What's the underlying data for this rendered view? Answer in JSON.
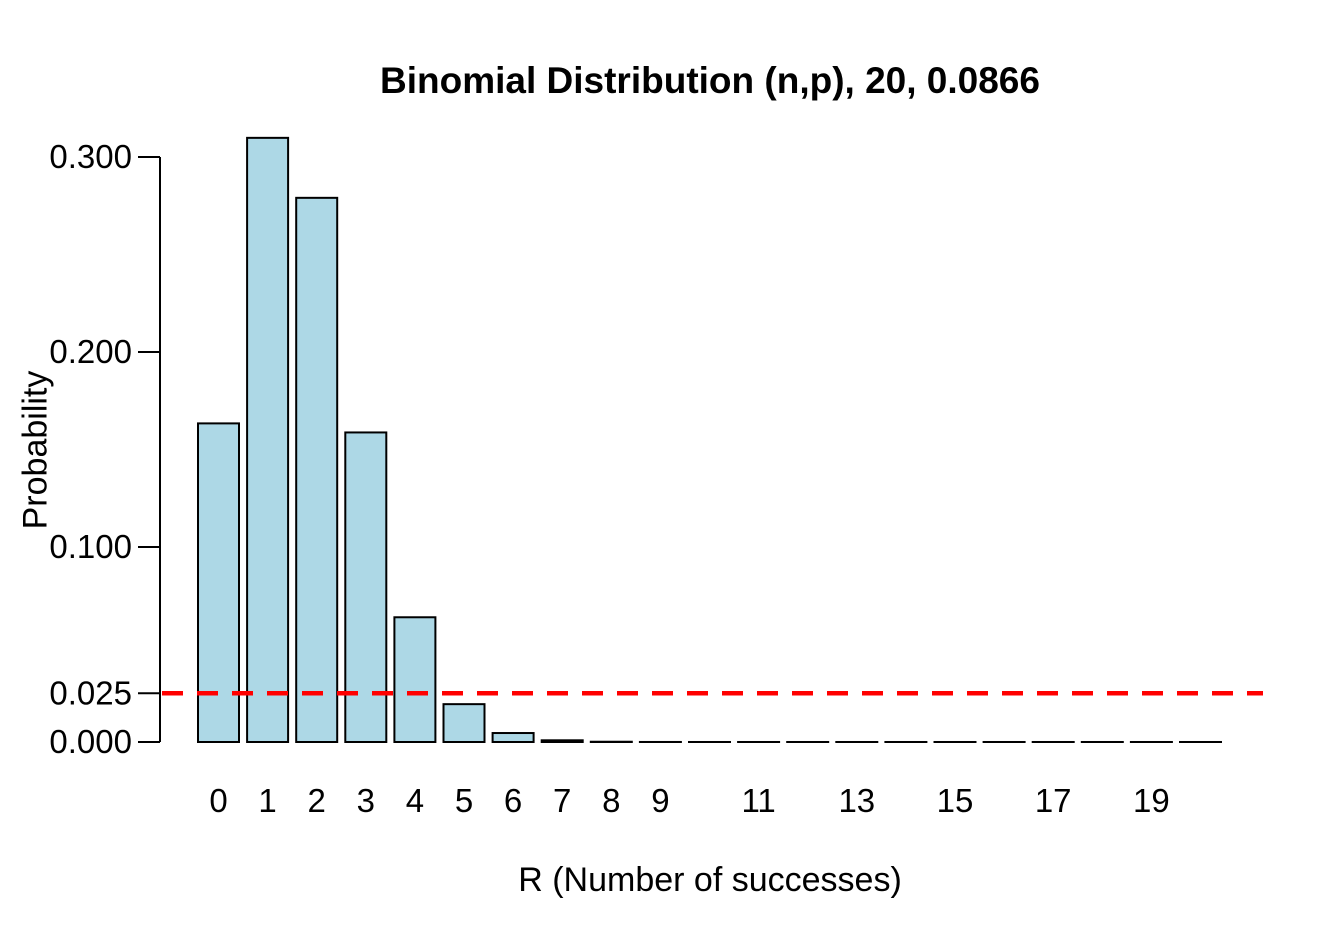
{
  "page": {
    "background": "#ffffff"
  },
  "chart_data": {
    "type": "bar",
    "title": "Binomial Distribution (n,p), 20, 0.0866",
    "xlabel": "R (Number of successes)",
    "ylabel": "Probability",
    "n": 20,
    "p": 0.0866,
    "categories": [
      0,
      1,
      2,
      3,
      4,
      5,
      6,
      7,
      8,
      9,
      10,
      11,
      12,
      13,
      14,
      15,
      16,
      17,
      18,
      19,
      20
    ],
    "x_tick_labels": [
      "0",
      "1",
      "2",
      "3",
      "4",
      "5",
      "6",
      "7",
      "8",
      "9",
      "",
      "11",
      "",
      "13",
      "",
      "15",
      "",
      "17",
      "",
      "19",
      ""
    ],
    "values": [
      0.16339,
      0.30982,
      0.27906,
      0.158745,
      0.063966,
      0.019407,
      0.0046,
      0.000872,
      0.000134,
      1.7e-05,
      1.8e-06,
      1.5e-07,
      1.1e-08,
      0,
      0,
      0,
      0,
      0,
      0,
      0,
      0
    ],
    "y_ticks": [
      {
        "value": 0.0,
        "label": "0.000"
      },
      {
        "value": 0.025,
        "label": "0.025"
      },
      {
        "value": 0.1,
        "label": "0.100"
      },
      {
        "value": 0.2,
        "label": "0.200"
      },
      {
        "value": 0.3,
        "label": "0.300"
      }
    ],
    "ylim": [
      0,
      0.3
    ],
    "grid": false,
    "legend": null,
    "reference_line": {
      "value": 0.025,
      "color": "#FF0000",
      "style": "dashed"
    },
    "colors": {
      "bar_fill": "#ADD8E6",
      "bar_border": "#000000",
      "axis": "#000000",
      "text": "#000000"
    }
  }
}
